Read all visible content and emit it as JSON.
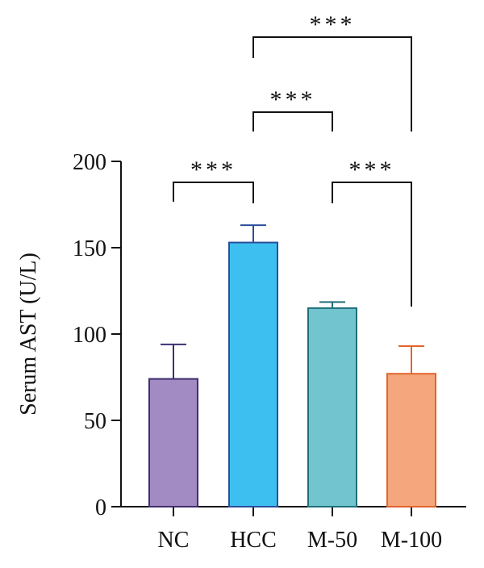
{
  "chart_data": {
    "type": "bar",
    "ylabel": "Serum AST (U/L)",
    "ylim": [
      0,
      200
    ],
    "yticks": [
      0,
      50,
      100,
      150,
      200
    ],
    "categories": [
      "NC",
      "HCC",
      "M-50",
      "M-100"
    ],
    "values": [
      74,
      153,
      115,
      77
    ],
    "errors": [
      20,
      10,
      3.5,
      16
    ],
    "colors": [
      "#a28ac3",
      "#3dc0ef",
      "#72c5cf",
      "#f5a67c"
    ],
    "edge_colors": [
      "#3f2f6f",
      "#2b4d9c",
      "#1f6f7a",
      "#e0652d"
    ],
    "comparisons": [
      {
        "from": "NC",
        "to": "HCC",
        "label": "***"
      },
      {
        "from": "HCC",
        "to": "M-50",
        "label": "***"
      },
      {
        "from": "HCC",
        "to": "M-100",
        "label": "***"
      },
      {
        "from": "M-50",
        "to": "M-100",
        "label": "***"
      }
    ]
  }
}
